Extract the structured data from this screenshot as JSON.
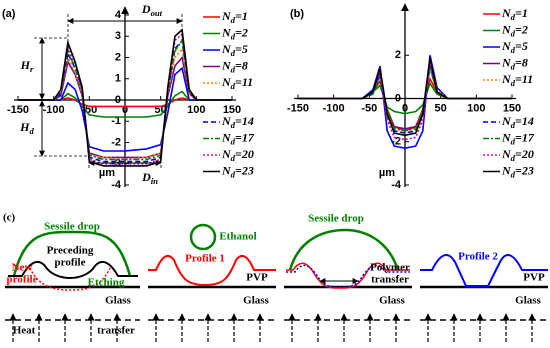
{
  "chart_data": [
    {
      "type": "line",
      "label": "(a)",
      "xlabel": "µm",
      "x": [
        -150,
        -100,
        -90,
        -80,
        -70,
        -60,
        -50,
        -30,
        0,
        30,
        50,
        60,
        70,
        80,
        90,
        100,
        150
      ],
      "xlim": [
        -150,
        150
      ],
      "xticks": [
        -150,
        -100,
        -50,
        0,
        50,
        100,
        150
      ],
      "ylim": [
        -4,
        4
      ],
      "yticks": [
        -4,
        -3,
        -2,
        -1,
        0,
        1,
        2,
        3,
        4
      ],
      "annotations": [
        "Dout",
        "Din",
        "Hr",
        "Hd"
      ],
      "series": [
        {
          "name": "Nd=1",
          "color": "#ff0000",
          "dash": "solid",
          "values": [
            0,
            0,
            0,
            0.1,
            0,
            -0.2,
            -0.3,
            -0.3,
            -0.3,
            -0.3,
            -0.3,
            -0.2,
            0,
            0.1,
            0,
            0,
            0
          ]
        },
        {
          "name": "Nd=2",
          "color": "#008000",
          "dash": "solid",
          "values": [
            0,
            0,
            0,
            0.3,
            0.1,
            -0.3,
            -0.7,
            -0.8,
            -0.8,
            -0.8,
            -0.7,
            -0.3,
            0.2,
            0.4,
            0,
            0,
            0
          ]
        },
        {
          "name": "Nd=5",
          "color": "#0000ff",
          "dash": "solid",
          "values": [
            0,
            0,
            0,
            0.8,
            0.5,
            -0.5,
            -2.2,
            -2.4,
            -2.4,
            -2.3,
            -2.1,
            -0.6,
            1.2,
            1.5,
            0,
            0,
            0
          ]
        },
        {
          "name": "Nd=8",
          "color": "#800080",
          "dash": "solid",
          "values": [
            0,
            0,
            0.2,
            1.8,
            1.2,
            0.2,
            -2.5,
            -2.7,
            -2.7,
            -2.7,
            -2.5,
            0.2,
            1.6,
            2.0,
            0.3,
            0,
            0
          ]
        },
        {
          "name": "Nd=11",
          "color": "#ff8000",
          "dash": "dotted",
          "values": [
            0,
            0,
            0.3,
            2.0,
            1.3,
            0.3,
            -2.6,
            -2.7,
            -2.8,
            -2.7,
            -2.5,
            0.3,
            2.0,
            2.4,
            0.3,
            0,
            0
          ]
        },
        {
          "name": "Nd=14",
          "color": "#0000cc",
          "dash": "dashed",
          "values": [
            0,
            0,
            0.3,
            2.2,
            1.5,
            0.5,
            -2.7,
            -2.9,
            -2.9,
            -2.9,
            -2.7,
            0.4,
            2.4,
            2.8,
            0.4,
            0,
            0
          ]
        },
        {
          "name": "Nd=17",
          "color": "#008000",
          "dash": "dashdot",
          "values": [
            0,
            0,
            0.3,
            2.3,
            1.5,
            0.4,
            -2.6,
            -2.8,
            -2.8,
            -2.8,
            -2.6,
            0.4,
            2.3,
            2.8,
            0.4,
            0,
            0
          ]
        },
        {
          "name": "Nd=20",
          "color": "#cc00cc",
          "dash": "dotted",
          "values": [
            0,
            0,
            0.4,
            2.5,
            1.7,
            0.5,
            -2.8,
            -3.0,
            -3.0,
            -3.0,
            -2.8,
            0.5,
            2.8,
            3.1,
            0.5,
            0,
            0
          ]
        },
        {
          "name": "Nd=23",
          "color": "#000000",
          "dash": "solid",
          "values": [
            0,
            0,
            0.5,
            2.7,
            1.8,
            0.6,
            -2.9,
            -3.1,
            -3.1,
            -3.1,
            -2.9,
            0.6,
            3.0,
            3.3,
            0.5,
            0,
            0
          ]
        }
      ]
    },
    {
      "type": "line",
      "label": "(b)",
      "xlabel": "µm",
      "x": [
        -150,
        -60,
        -45,
        -35,
        -25,
        -15,
        0,
        15,
        25,
        35,
        45,
        60,
        150
      ],
      "xlim": [
        -150,
        150
      ],
      "xticks": [
        -150,
        -100,
        -50,
        0,
        50,
        100,
        150
      ],
      "ylim": [
        -4,
        4
      ],
      "yticks": [
        -4,
        -2,
        0,
        2
      ],
      "series": [
        {
          "name": "Nd=1",
          "color": "#ff0000",
          "dash": "solid",
          "values": [
            0,
            0,
            0.3,
            0.8,
            -0.5,
            -1.3,
            -1.5,
            -1.3,
            -0.5,
            0.9,
            0.3,
            0,
            0
          ]
        },
        {
          "name": "Nd=2",
          "color": "#008000",
          "dash": "solid",
          "values": [
            0,
            0,
            0.3,
            0.6,
            -0.4,
            -0.6,
            -0.7,
            -0.6,
            -0.3,
            0.7,
            0.2,
            0,
            0
          ]
        },
        {
          "name": "Nd=5",
          "color": "#0000ff",
          "dash": "solid",
          "values": [
            0,
            0,
            0.4,
            1.5,
            -1.5,
            -2.2,
            -2.3,
            -2.2,
            -1.5,
            2.0,
            0.5,
            0,
            0
          ]
        },
        {
          "name": "Nd=8",
          "color": "#800080",
          "dash": "solid",
          "values": [
            0,
            0,
            0.3,
            1.2,
            -0.8,
            -1.3,
            -1.4,
            -1.3,
            -0.8,
            1.6,
            0.3,
            0,
            0
          ]
        },
        {
          "name": "Nd=11",
          "color": "#ff8000",
          "dash": "dotted",
          "values": [
            0,
            0,
            0.3,
            1.3,
            -1.0,
            -1.5,
            -1.6,
            -1.5,
            -1.0,
            1.8,
            0.4,
            0,
            0
          ]
        },
        {
          "name": "Nd=14",
          "color": "#0000cc",
          "dash": "dashed",
          "values": [
            0,
            0,
            0.3,
            1.1,
            -0.8,
            -1.5,
            -1.6,
            -1.5,
            -0.8,
            1.5,
            0.3,
            0,
            0
          ]
        },
        {
          "name": "Nd=17",
          "color": "#008000",
          "dash": "dashdot",
          "values": [
            0,
            0,
            0.2,
            1.0,
            -0.5,
            -1.4,
            -1.5,
            -1.4,
            -0.5,
            1.4,
            0.3,
            0,
            0
          ]
        },
        {
          "name": "Nd=20",
          "color": "#cc00cc",
          "dash": "dotted",
          "values": [
            0,
            0,
            0.3,
            1.2,
            -1.0,
            -1.8,
            -1.9,
            -1.8,
            -1.0,
            1.7,
            0.3,
            0,
            0
          ]
        },
        {
          "name": "Nd=23",
          "color": "#000000",
          "dash": "solid",
          "values": [
            0,
            0,
            0.3,
            1.4,
            -0.7,
            -1.6,
            -1.7,
            -1.6,
            -0.7,
            1.9,
            0.3,
            0,
            0
          ]
        }
      ]
    }
  ],
  "diagram": {
    "label": "(c)",
    "panels": [
      {
        "sessile": "Sessile drop",
        "preceding": [
          "Preceding",
          "profile"
        ],
        "new": [
          "New",
          "profile"
        ],
        "etching": "Etching",
        "glass": "Glass",
        "heat": "Heat",
        "transfer": "transfer"
      },
      {
        "ethanol": "Ethanol",
        "profile": "Profile 1",
        "pvp": "PVP",
        "glass": "Glass"
      },
      {
        "sessile": "Sessile drop",
        "polymer": [
          "Polymer",
          "transfer"
        ],
        "glass": "Glass"
      },
      {
        "profile": "Profile 2",
        "pvp": "PVP",
        "glass": "Glass"
      }
    ]
  }
}
